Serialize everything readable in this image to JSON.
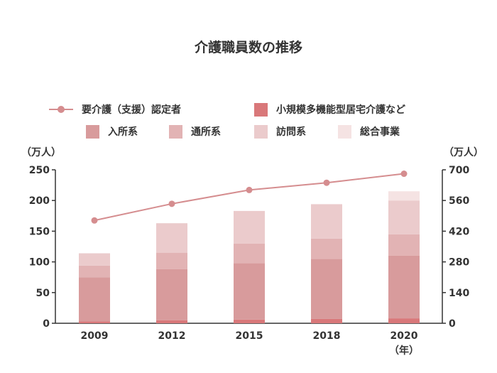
{
  "chart_data": {
    "type": "bar",
    "title": "介護職員数の推移",
    "categories": [
      "2009",
      "2012",
      "2015",
      "2018",
      "2020"
    ],
    "x_unit": "（年）",
    "left_axis": {
      "unit": "（万人）",
      "ylim": [
        0,
        250
      ],
      "ticks": [
        "0",
        "50",
        "100",
        "150",
        "200",
        "250"
      ]
    },
    "right_axis": {
      "unit": "（万人）",
      "ylim": [
        0,
        700
      ],
      "ticks": [
        "0",
        "140",
        "280",
        "420",
        "560",
        "700"
      ]
    },
    "grid": false,
    "legend_position": "top",
    "series": [
      {
        "name": "小規模多機能型居宅介護など",
        "kind": "bar",
        "color": "#d9787a",
        "values": [
          3,
          5,
          6,
          7,
          8
        ]
      },
      {
        "name": "入所系",
        "kind": "bar",
        "color": "#d89b9c",
        "values": [
          72,
          83,
          92,
          98,
          102
        ]
      },
      {
        "name": "通所系",
        "kind": "bar",
        "color": "#e2b3b4",
        "values": [
          19,
          27,
          32,
          33,
          35
        ]
      },
      {
        "name": "訪問系",
        "kind": "bar",
        "color": "#ebcbcc",
        "values": [
          20,
          48,
          53,
          56,
          55
        ]
      },
      {
        "name": "総合事業",
        "kind": "bar",
        "color": "#f5e3e3",
        "values": [
          0,
          0,
          0,
          0,
          15
        ]
      },
      {
        "name": "要介護（支援）認定者",
        "kind": "line",
        "axis": "right",
        "color": "#d58d8f",
        "values": [
          469,
          545,
          608,
          641,
          682
        ]
      }
    ]
  }
}
